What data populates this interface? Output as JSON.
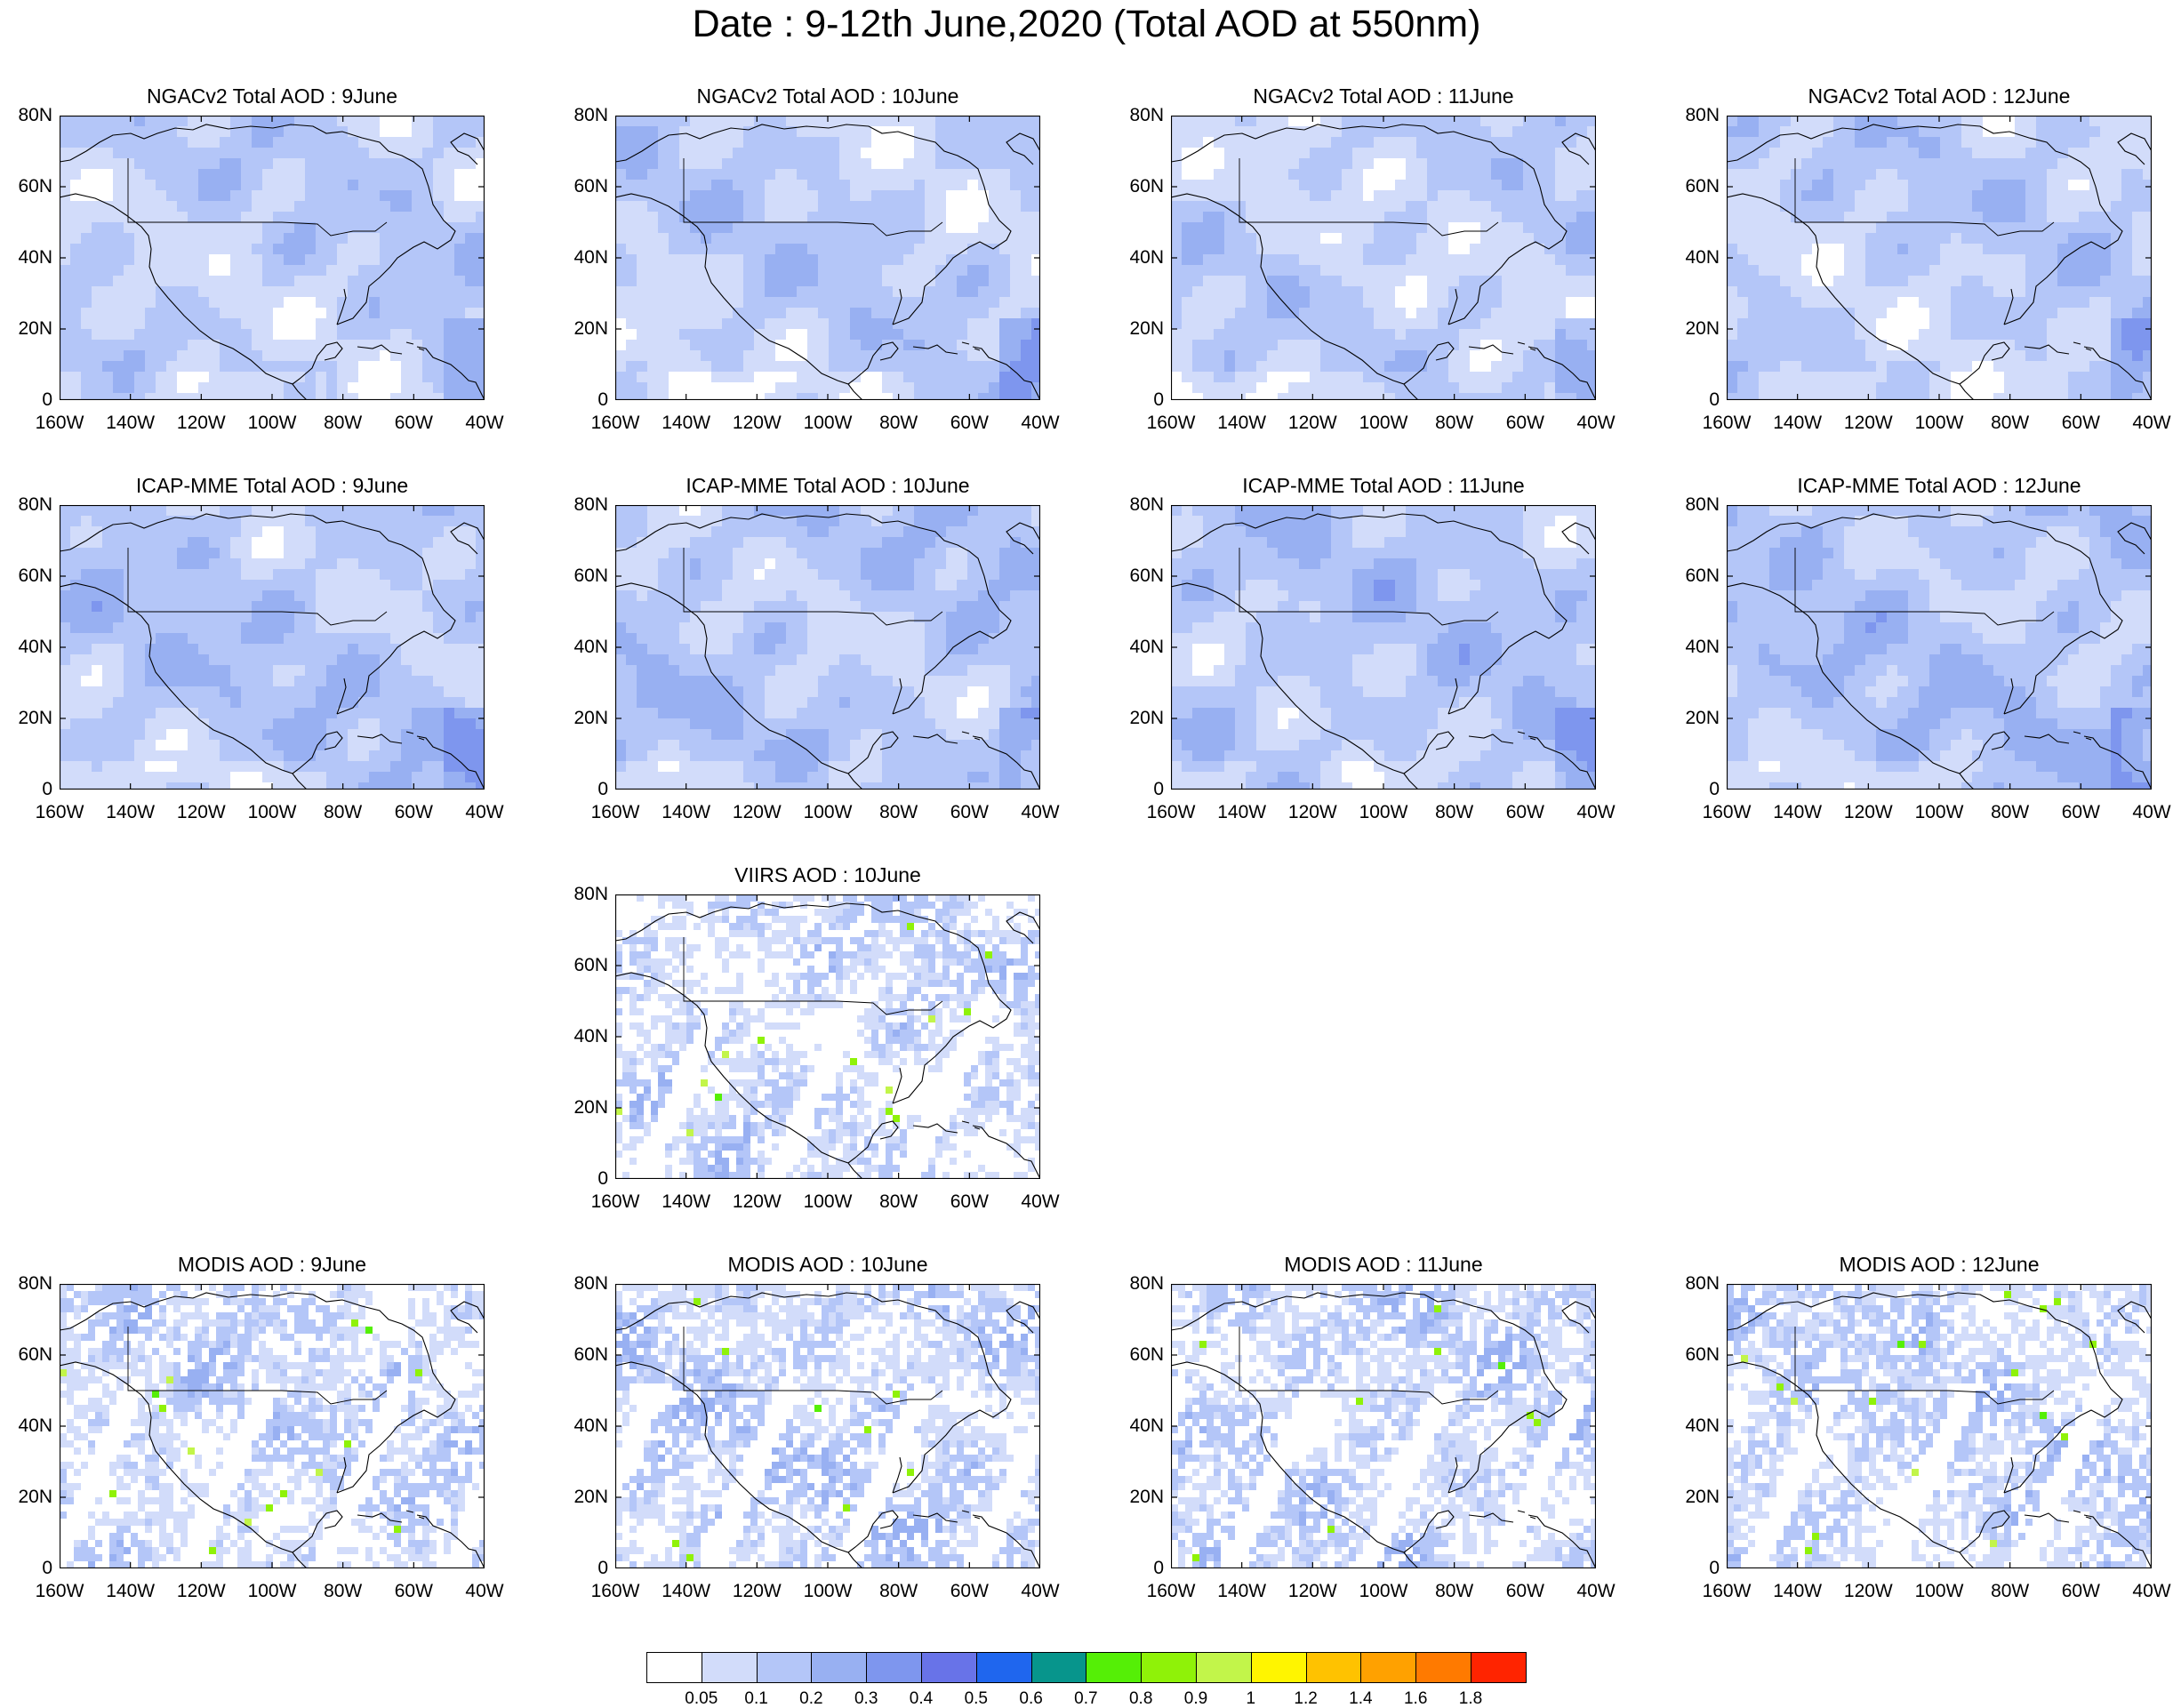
{
  "figure": {
    "title": "Date : 9-12th June,2020 (Total AOD at 550nm)"
  },
  "lat_ticks": [
    "80N",
    "60N",
    "40N",
    "20N",
    "0"
  ],
  "lon_ticks": [
    "160W",
    "140W",
    "120W",
    "100W",
    "80W",
    "60W",
    "40W"
  ],
  "map_extent": {
    "lon": [
      -160,
      -40
    ],
    "lat": [
      0,
      80
    ]
  },
  "panels": [
    {
      "title": "NGACv2 Total AOD : 9June",
      "product": "NGACv2",
      "day": "9June",
      "style": "model",
      "mean_level": 1.6
    },
    {
      "title": "NGACv2 Total AOD : 10June",
      "product": "NGACv2",
      "day": "10June",
      "style": "model",
      "mean_level": 1.6
    },
    {
      "title": "NGACv2 Total AOD : 11June",
      "product": "NGACv2",
      "day": "11June",
      "style": "model",
      "mean_level": 1.5
    },
    {
      "title": "NGACv2 Total AOD : 12June",
      "product": "NGACv2",
      "day": "12June",
      "style": "model",
      "mean_level": 1.6
    },
    {
      "title": "ICAP-MME Total AOD : 9June",
      "product": "ICAP-MME",
      "day": "9June",
      "style": "model",
      "mean_level": 1.9
    },
    {
      "title": "ICAP-MME Total AOD : 10June",
      "product": "ICAP-MME",
      "day": "10June",
      "style": "model",
      "mean_level": 1.9
    },
    {
      "title": "ICAP-MME Total AOD : 11June",
      "product": "ICAP-MME",
      "day": "11June",
      "style": "model",
      "mean_level": 1.9
    },
    {
      "title": "ICAP-MME Total AOD : 12June",
      "product": "ICAP-MME",
      "day": "12June",
      "style": "model",
      "mean_level": 2.0
    },
    {
      "title": "VIIRS AOD : 10June",
      "product": "VIIRS",
      "day": "10June",
      "style": "satellite",
      "mean_level": 1.2
    },
    {
      "title": "MODIS AOD : 9June",
      "product": "MODIS",
      "day": "9June",
      "style": "satellite",
      "mean_level": 1.3
    },
    {
      "title": "MODIS AOD : 10June",
      "product": "MODIS",
      "day": "10June",
      "style": "satellite",
      "mean_level": 1.5
    },
    {
      "title": "MODIS AOD : 11June",
      "product": "MODIS",
      "day": "11June",
      "style": "satellite",
      "mean_level": 1.4
    },
    {
      "title": "MODIS AOD : 12June",
      "product": "MODIS",
      "day": "12June",
      "style": "satellite",
      "mean_level": 1.4
    }
  ],
  "colorbar": {
    "labels": [
      "0.05",
      "0.1",
      "0.2",
      "0.3",
      "0.4",
      "0.5",
      "0.6",
      "0.7",
      "0.8",
      "0.9",
      "1",
      "1.2",
      "1.4",
      "1.6",
      "1.8"
    ],
    "colors": [
      "#ffffff",
      "#d2dcfa",
      "#b4c6f8",
      "#98b0f2",
      "#7e96ee",
      "#6873e8",
      "#1f66ee",
      "#07958c",
      "#55ef06",
      "#8ff208",
      "#c2f54a",
      "#fff500",
      "#ffc200",
      "#ffa100",
      "#ff7a00",
      "#ff2400"
    ]
  }
}
